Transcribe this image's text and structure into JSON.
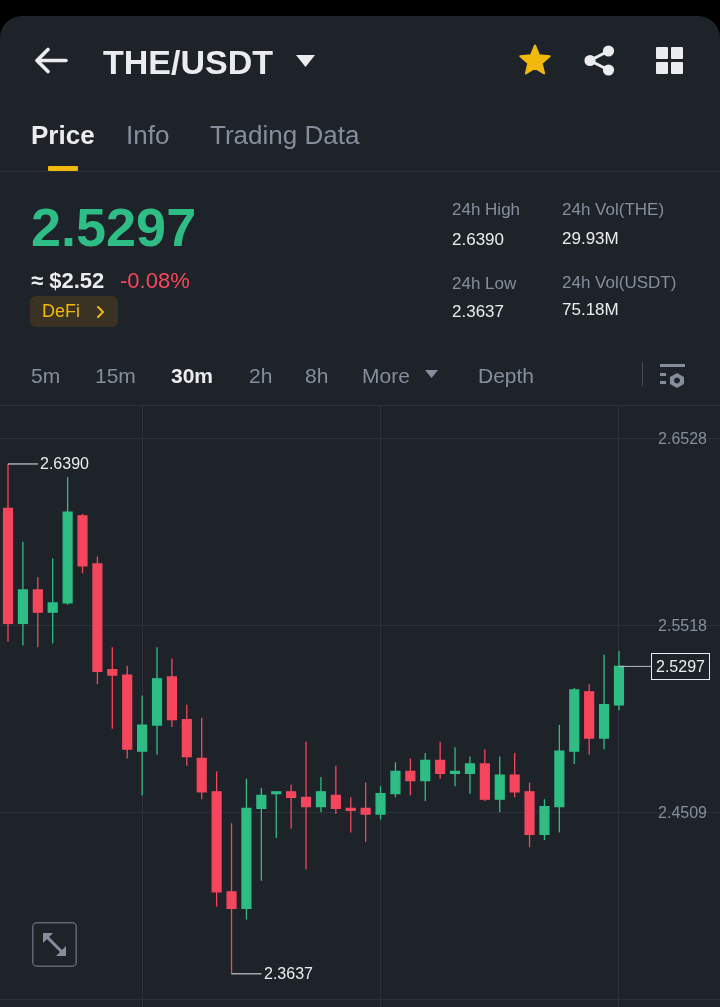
{
  "chart_data": {
    "type": "candlestick",
    "title": "THE/USDT",
    "annotations": [
      "Price",
      "Info",
      "Trading Data",
      "2.5297",
      "≈ $2.52",
      "-0.08%",
      "DeFi",
      "24h High",
      "2.6390",
      "24h Vol(THE)",
      "29.93M",
      "24h Low",
      "2.3637",
      "24h Vol(USDT)",
      "75.18M",
      "5m",
      "15m",
      "30m",
      "2h",
      "8h",
      "More",
      "Depth",
      "2.6390",
      "2.3637",
      "2.5297"
    ],
    "categories": [
      null,
      null,
      null,
      null,
      null,
      null,
      null,
      null,
      null,
      null,
      null,
      null,
      null,
      null,
      null,
      null,
      null,
      null,
      null,
      null,
      null,
      null,
      null,
      null,
      null,
      null,
      null,
      null,
      null,
      null,
      null,
      null,
      null,
      null,
      null,
      null,
      null,
      null,
      null,
      null,
      null,
      null
    ],
    "ohlc": [
      [
        2.615,
        2.639,
        2.543,
        2.553
      ],
      [
        2.553,
        2.597,
        2.541,
        2.571
      ],
      [
        2.571,
        2.578,
        2.54,
        2.559
      ],
      [
        2.559,
        2.588,
        2.542,
        2.564
      ],
      [
        2.564,
        2.632,
        2.563,
        2.613
      ],
      [
        2.611,
        2.612,
        2.58,
        2.584
      ],
      [
        2.585,
        2.589,
        2.52,
        2.527
      ],
      [
        2.528,
        2.54,
        2.496,
        2.525
      ],
      [
        2.525,
        2.53,
        2.48,
        2.485
      ],
      [
        2.484,
        2.514,
        2.46,
        2.498
      ],
      [
        2.498,
        2.54,
        2.482,
        2.523
      ],
      [
        2.524,
        2.534,
        2.497,
        2.501
      ],
      [
        2.501,
        2.509,
        2.476,
        2.481
      ],
      [
        2.48,
        2.502,
        2.458,
        2.462
      ],
      [
        2.462,
        2.473,
        2.4,
        2.408
      ],
      [
        2.408,
        2.445,
        2.3637,
        2.399
      ],
      [
        2.399,
        2.469,
        2.393,
        2.453
      ],
      [
        2.453,
        2.464,
        2.414,
        2.46
      ],
      [
        2.461,
        2.462,
        2.437,
        2.462
      ],
      [
        2.462,
        2.466,
        2.442,
        2.459
      ],
      [
        2.459,
        2.489,
        2.42,
        2.454
      ],
      [
        2.454,
        2.47,
        2.451,
        2.462
      ],
      [
        2.46,
        2.476,
        2.45,
        2.453
      ],
      [
        2.453,
        2.459,
        2.44,
        2.452
      ],
      [
        2.453,
        2.467,
        2.435,
        2.45
      ],
      [
        2.45,
        2.465,
        2.447,
        2.461
      ],
      [
        2.461,
        2.478,
        2.459,
        2.473
      ],
      [
        2.473,
        2.48,
        2.46,
        2.468
      ],
      [
        2.468,
        2.483,
        2.457,
        2.479
      ],
      [
        2.479,
        2.489,
        2.469,
        2.472
      ],
      [
        2.472,
        2.486,
        2.465,
        2.473
      ],
      [
        2.472,
        2.481,
        2.461,
        2.477
      ],
      [
        2.477,
        2.485,
        2.457,
        2.458
      ],
      [
        2.458,
        2.481,
        2.451,
        2.471
      ],
      [
        2.471,
        2.483,
        2.459,
        2.462
      ],
      [
        2.462,
        2.467,
        2.432,
        2.439
      ],
      [
        2.439,
        2.458,
        2.436,
        2.454
      ],
      [
        2.454,
        2.498,
        2.44,
        2.484
      ],
      [
        2.484,
        2.518,
        2.477,
        2.517
      ],
      [
        2.516,
        2.52,
        2.482,
        2.491
      ],
      [
        2.491,
        2.536,
        2.485,
        2.509
      ],
      [
        2.509,
        2.538,
        2.506,
        2.5297
      ]
    ],
    "colors": [
      "#f6465d",
      "#2ebd85",
      "#f6465d",
      "#2ebd85",
      "#2ebd85",
      "#f6465d",
      "#f6465d",
      "#f6465d",
      "#f6465d",
      "#2ebd85",
      "#2ebd85",
      "#f6465d",
      "#f6465d",
      "#f6465d",
      "#f6465d",
      "#f6465d",
      "#2ebd85",
      "#2ebd85",
      "#2ebd85",
      "#f6465d",
      "#f6465d",
      "#2ebd85",
      "#f6465d",
      "#f6465d",
      "#f6465d",
      "#2ebd85",
      "#2ebd85",
      "#f6465d",
      "#2ebd85",
      "#f6465d",
      "#2ebd85",
      "#2ebd85",
      "#f6465d",
      "#2ebd85",
      "#f6465d",
      "#f6465d",
      "#2ebd85",
      "#2ebd85",
      "#2ebd85",
      "#f6465d",
      "#2ebd85",
      "#2ebd85"
    ],
    "ylim": [
      2.3458,
      2.6703
    ],
    "yticks": [
      2.6528,
      2.5518,
      2.4509,
      {
        "value": 2.3499,
        "label": null
      }
    ],
    "grid": true,
    "tick_labels": "y"
  }
}
